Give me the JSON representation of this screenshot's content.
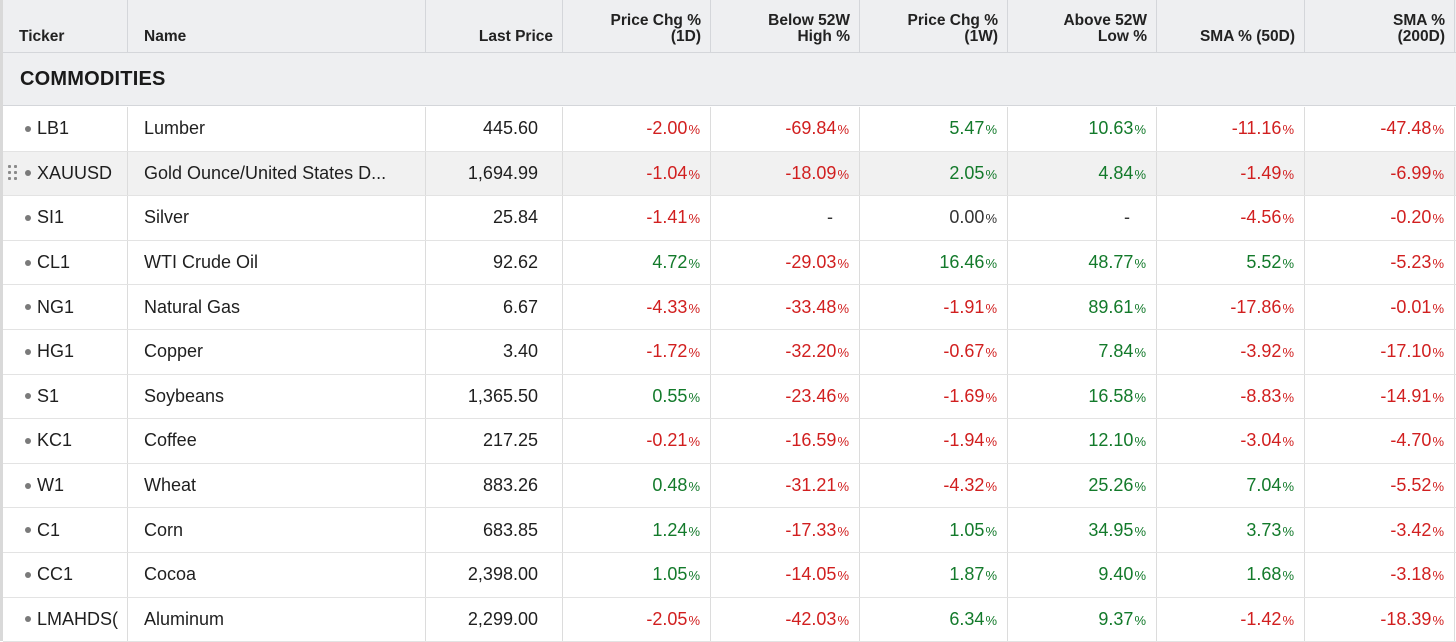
{
  "columns": {
    "ticker": "Ticker",
    "name": "Name",
    "last_price": "Last Price",
    "chg1d_line1": "Price Chg %",
    "chg1d_line2": "(1D)",
    "below52_line1": "Below 52W",
    "below52_line2": "High %",
    "chg1w_line1": "Price Chg %",
    "chg1w_line2": "(1W)",
    "above52_line1": "Above 52W",
    "above52_line2": "Low %",
    "sma50": "SMA % (50D)",
    "sma200_line1": "SMA %",
    "sma200_line2": "(200D)"
  },
  "group": {
    "title": "COMMODITIES"
  },
  "colors": {
    "positive": "#137a2b",
    "negative": "#d11f1f",
    "neutral": "#333333",
    "header_bg": "#eeeff1"
  },
  "rows": [
    {
      "ticker": "LB1",
      "name": "Lumber",
      "price": "445.60",
      "chg1d": "-2.00",
      "below52": "-69.84",
      "chg1w": "5.47",
      "above52": "10.63",
      "sma50": "-11.16",
      "sma200": "-47.48"
    },
    {
      "ticker": "XAUUSD",
      "name": "Gold Ounce/United States D...",
      "price": "1,694.99",
      "chg1d": "-1.04",
      "below52": "-18.09",
      "chg1w": "2.05",
      "above52": "4.84",
      "sma50": "-1.49",
      "sma200": "-6.99",
      "highlight": true
    },
    {
      "ticker": "SI1",
      "name": "Silver",
      "price": "25.84",
      "chg1d": "-1.41",
      "below52": "-",
      "chg1w": "0.00",
      "above52": "-",
      "sma50": "-4.56",
      "sma200": "-0.20"
    },
    {
      "ticker": "CL1",
      "name": "WTI Crude Oil",
      "price": "92.62",
      "chg1d": "4.72",
      "below52": "-29.03",
      "chg1w": "16.46",
      "above52": "48.77",
      "sma50": "5.52",
      "sma200": "-5.23"
    },
    {
      "ticker": "NG1",
      "name": "Natural Gas",
      "price": "6.67",
      "chg1d": "-4.33",
      "below52": "-33.48",
      "chg1w": "-1.91",
      "above52": "89.61",
      "sma50": "-17.86",
      "sma200": "-0.01"
    },
    {
      "ticker": "HG1",
      "name": "Copper",
      "price": "3.40",
      "chg1d": "-1.72",
      "below52": "-32.20",
      "chg1w": "-0.67",
      "above52": "7.84",
      "sma50": "-3.92",
      "sma200": "-17.10"
    },
    {
      "ticker": "S1",
      "name": "Soybeans",
      "price": "1,365.50",
      "chg1d": "0.55",
      "below52": "-23.46",
      "chg1w": "-1.69",
      "above52": "16.58",
      "sma50": "-8.83",
      "sma200": "-14.91"
    },
    {
      "ticker": "KC1",
      "name": "Coffee",
      "price": "217.25",
      "chg1d": "-0.21",
      "below52": "-16.59",
      "chg1w": "-1.94",
      "above52": "12.10",
      "sma50": "-3.04",
      "sma200": "-4.70"
    },
    {
      "ticker": "W1",
      "name": "Wheat",
      "price": "883.26",
      "chg1d": "0.48",
      "below52": "-31.21",
      "chg1w": "-4.32",
      "above52": "25.26",
      "sma50": "7.04",
      "sma200": "-5.52"
    },
    {
      "ticker": "C1",
      "name": "Corn",
      "price": "683.85",
      "chg1d": "1.24",
      "below52": "-17.33",
      "chg1w": "1.05",
      "above52": "34.95",
      "sma50": "3.73",
      "sma200": "-3.42"
    },
    {
      "ticker": "CC1",
      "name": "Cocoa",
      "price": "2,398.00",
      "chg1d": "1.05",
      "below52": "-14.05",
      "chg1w": "1.87",
      "above52": "9.40",
      "sma50": "1.68",
      "sma200": "-3.18"
    },
    {
      "ticker": "LMAHDS(",
      "name": "Aluminum",
      "price": "2,299.00",
      "chg1d": "-2.05",
      "below52": "-42.03",
      "chg1w": "6.34",
      "above52": "9.37",
      "sma50": "-1.42",
      "sma200": "-18.39"
    }
  ]
}
